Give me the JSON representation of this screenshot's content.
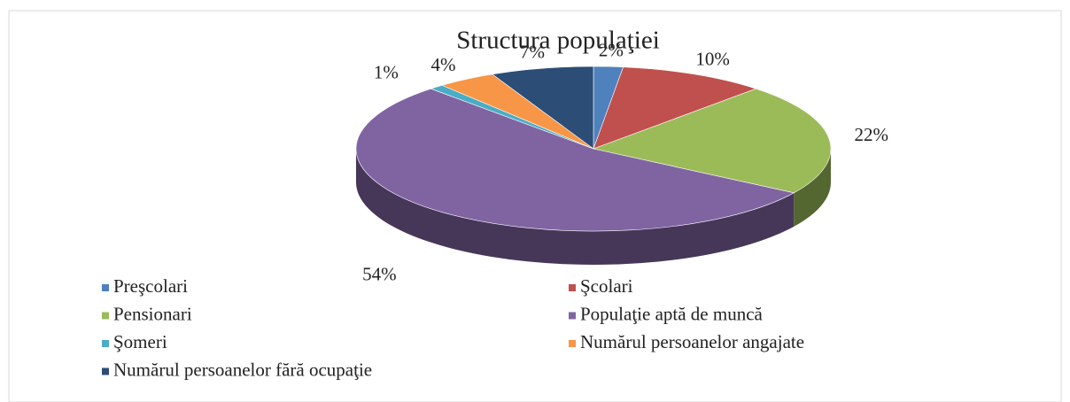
{
  "chart_data": {
    "type": "pie3d",
    "title": "Structura  populaţiei",
    "categories": [
      "Preşcolari",
      "Şcolari",
      "Pensionari",
      "Populaţie aptă de muncă",
      "Şomeri",
      "Numărul persoanelor angajate",
      "Numărul persoanelor fără ocupaţie"
    ],
    "values": [
      2,
      10,
      22,
      54,
      1,
      4,
      7
    ],
    "value_labels": [
      "2%",
      "10%",
      "22%",
      "54%",
      "1%",
      "4%",
      "7%"
    ],
    "colors": [
      "#4f81bd",
      "#c0504d",
      "#9bbb59",
      "#8064a2",
      "#4bacc6",
      "#f79646",
      "#2c4d75"
    ],
    "legend": "bottom"
  }
}
